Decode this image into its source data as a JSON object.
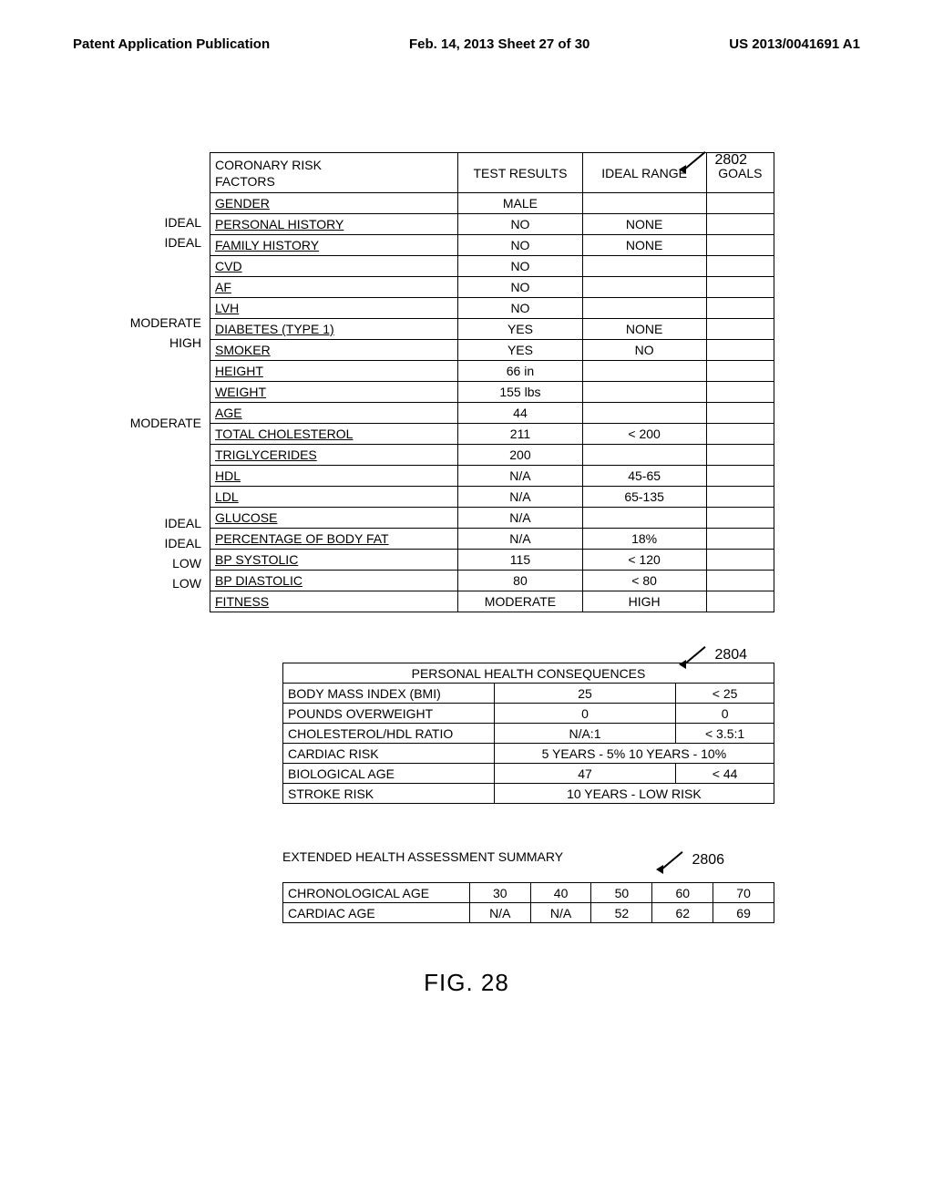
{
  "header": {
    "left": "Patent Application Publication",
    "center": "Feb. 14, 2013  Sheet 27 of 30",
    "right": "US 2013/0041691 A1"
  },
  "callouts": {
    "c1": "2802",
    "c2": "2804",
    "c3": "2806"
  },
  "table1": {
    "headers": {
      "factors": "CORONARY RISK\nFACTORS",
      "results": "TEST RESULTS",
      "ideal": "IDEAL RANGE",
      "goals": "GOALS"
    },
    "rows": [
      {
        "label": "",
        "factor": "GENDER",
        "result": "MALE",
        "ideal": "",
        "goals": ""
      },
      {
        "label": "IDEAL",
        "factor": "PERSONAL HISTORY",
        "result": "NO",
        "ideal": "NONE",
        "goals": ""
      },
      {
        "label": "IDEAL",
        "factor": "FAMILY HISTORY",
        "result": "NO",
        "ideal": "NONE",
        "goals": ""
      },
      {
        "label": "",
        "factor": "CVD",
        "result": "NO",
        "ideal": "",
        "goals": ""
      },
      {
        "label": "",
        "factor": "AF",
        "result": "NO",
        "ideal": "",
        "goals": ""
      },
      {
        "label": "",
        "factor": "LVH",
        "result": "NO",
        "ideal": "",
        "goals": ""
      },
      {
        "label": "MODERATE",
        "factor": "DIABETES (TYPE 1)",
        "result": "YES",
        "ideal": "NONE",
        "goals": ""
      },
      {
        "label": "HIGH",
        "factor": "SMOKER",
        "result": "YES",
        "ideal": "NO",
        "goals": ""
      },
      {
        "label": "",
        "factor": "HEIGHT",
        "result": "66 in",
        "ideal": "",
        "goals": ""
      },
      {
        "label": "",
        "factor": "WEIGHT",
        "result": "155 lbs",
        "ideal": "",
        "goals": ""
      },
      {
        "label": "",
        "factor": "AGE",
        "result": "44",
        "ideal": "",
        "goals": ""
      },
      {
        "label": "MODERATE",
        "factor": "TOTAL CHOLESTEROL",
        "result": "211",
        "ideal": "< 200",
        "goals": ""
      },
      {
        "label": "",
        "factor": "TRIGLYCERIDES",
        "result": "200",
        "ideal": "",
        "goals": ""
      },
      {
        "label": "",
        "factor": "HDL",
        "result": "N/A",
        "ideal": "45-65",
        "goals": ""
      },
      {
        "label": "",
        "factor": "LDL",
        "result": "N/A",
        "ideal": "65-135",
        "goals": ""
      },
      {
        "label": "",
        "factor": "GLUCOSE",
        "result": "N/A",
        "ideal": "",
        "goals": ""
      },
      {
        "label": "IDEAL",
        "factor": "PERCENTAGE OF BODY FAT",
        "result": "N/A",
        "ideal": "18%",
        "goals": ""
      },
      {
        "label": "IDEAL",
        "factor": "BP SYSTOLIC",
        "result": "115",
        "ideal": "< 120",
        "goals": ""
      },
      {
        "label": "LOW",
        "factor": "BP DIASTOLIC",
        "result": "80",
        "ideal": "< 80",
        "goals": ""
      },
      {
        "label": "LOW",
        "factor": "FITNESS",
        "result": "MODERATE",
        "ideal": "HIGH",
        "goals": ""
      }
    ]
  },
  "table2": {
    "title": "PERSONAL HEALTH CONSEQUENCES",
    "rows": [
      {
        "label": "BODY MASS INDEX (BMI)",
        "v1": "25",
        "v2": "< 25"
      },
      {
        "label": "POUNDS OVERWEIGHT",
        "v1": "0",
        "v2": "0"
      },
      {
        "label": "CHOLESTEROL/HDL RATIO",
        "v1": "N/A:1",
        "v2": "< 3.5:1"
      },
      {
        "label": "CARDIAC RISK",
        "span": "5 YEARS - 5%   10 YEARS - 10%"
      },
      {
        "label": "BIOLOGICAL AGE",
        "v1": "47",
        "v2": "< 44"
      },
      {
        "label": "STROKE RISK",
        "span": "10 YEARS - LOW RISK"
      }
    ]
  },
  "table3": {
    "title": "EXTENDED HEALTH ASSESSMENT SUMMARY",
    "rows": [
      {
        "label": "CHRONOLOGICAL AGE",
        "v": [
          "30",
          "40",
          "50",
          "60",
          "70"
        ]
      },
      {
        "label": "CARDIAC AGE",
        "v": [
          "N/A",
          "N/A",
          "52",
          "62",
          "69"
        ]
      }
    ]
  },
  "figure": "FIG. 28"
}
